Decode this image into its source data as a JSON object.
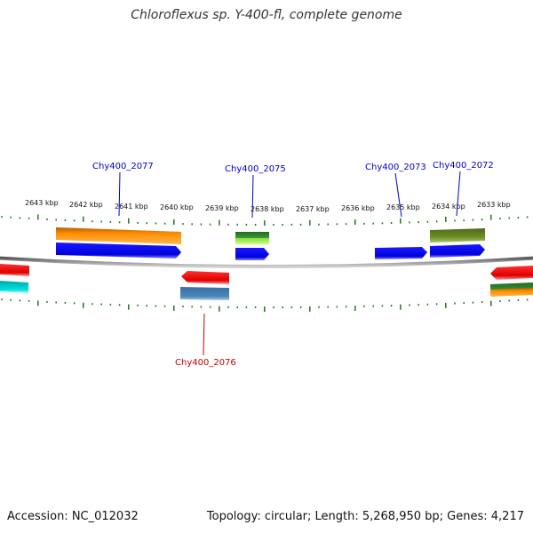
{
  "title": "Chloroflexus sp. Y-400-fl, complete genome",
  "footer": {
    "accession": "Accession: NC_012032",
    "summary": "Topology: circular; Length: 5,268,950 bp; Genes: 4,217"
  },
  "ruler_labels": [
    "2643 kbp",
    "2642 kbp",
    "2641 kbp",
    "2640 kbp",
    "2639 kbp",
    "2638 kbp",
    "2637 kbp",
    "2636 kbp",
    "2635 kbp",
    "2634 kbp",
    "2633 kbp"
  ],
  "gene_labels": {
    "chy2077": "Chy400_2077",
    "chy2075": "Chy400_2075",
    "chy2073": "Chy400_2073",
    "chy2072": "Chy400_2072",
    "chy2076": "Chy400_2076"
  },
  "colors": {
    "forward_label": "#0000cc",
    "reverse_label": "#cc0000",
    "tick": "#1a7a1a",
    "backbone": "#888888",
    "gene_blue": "#0000ee",
    "gene_red": "#ee0000",
    "gene_orange": "#ff8800",
    "gene_olive": "#6b8e23",
    "gene_green": "#2e8b2e",
    "gene_lightgreen": "#99ee44",
    "gene_steelblue": "#4682b4",
    "gene_cyan": "#00cccc"
  }
}
